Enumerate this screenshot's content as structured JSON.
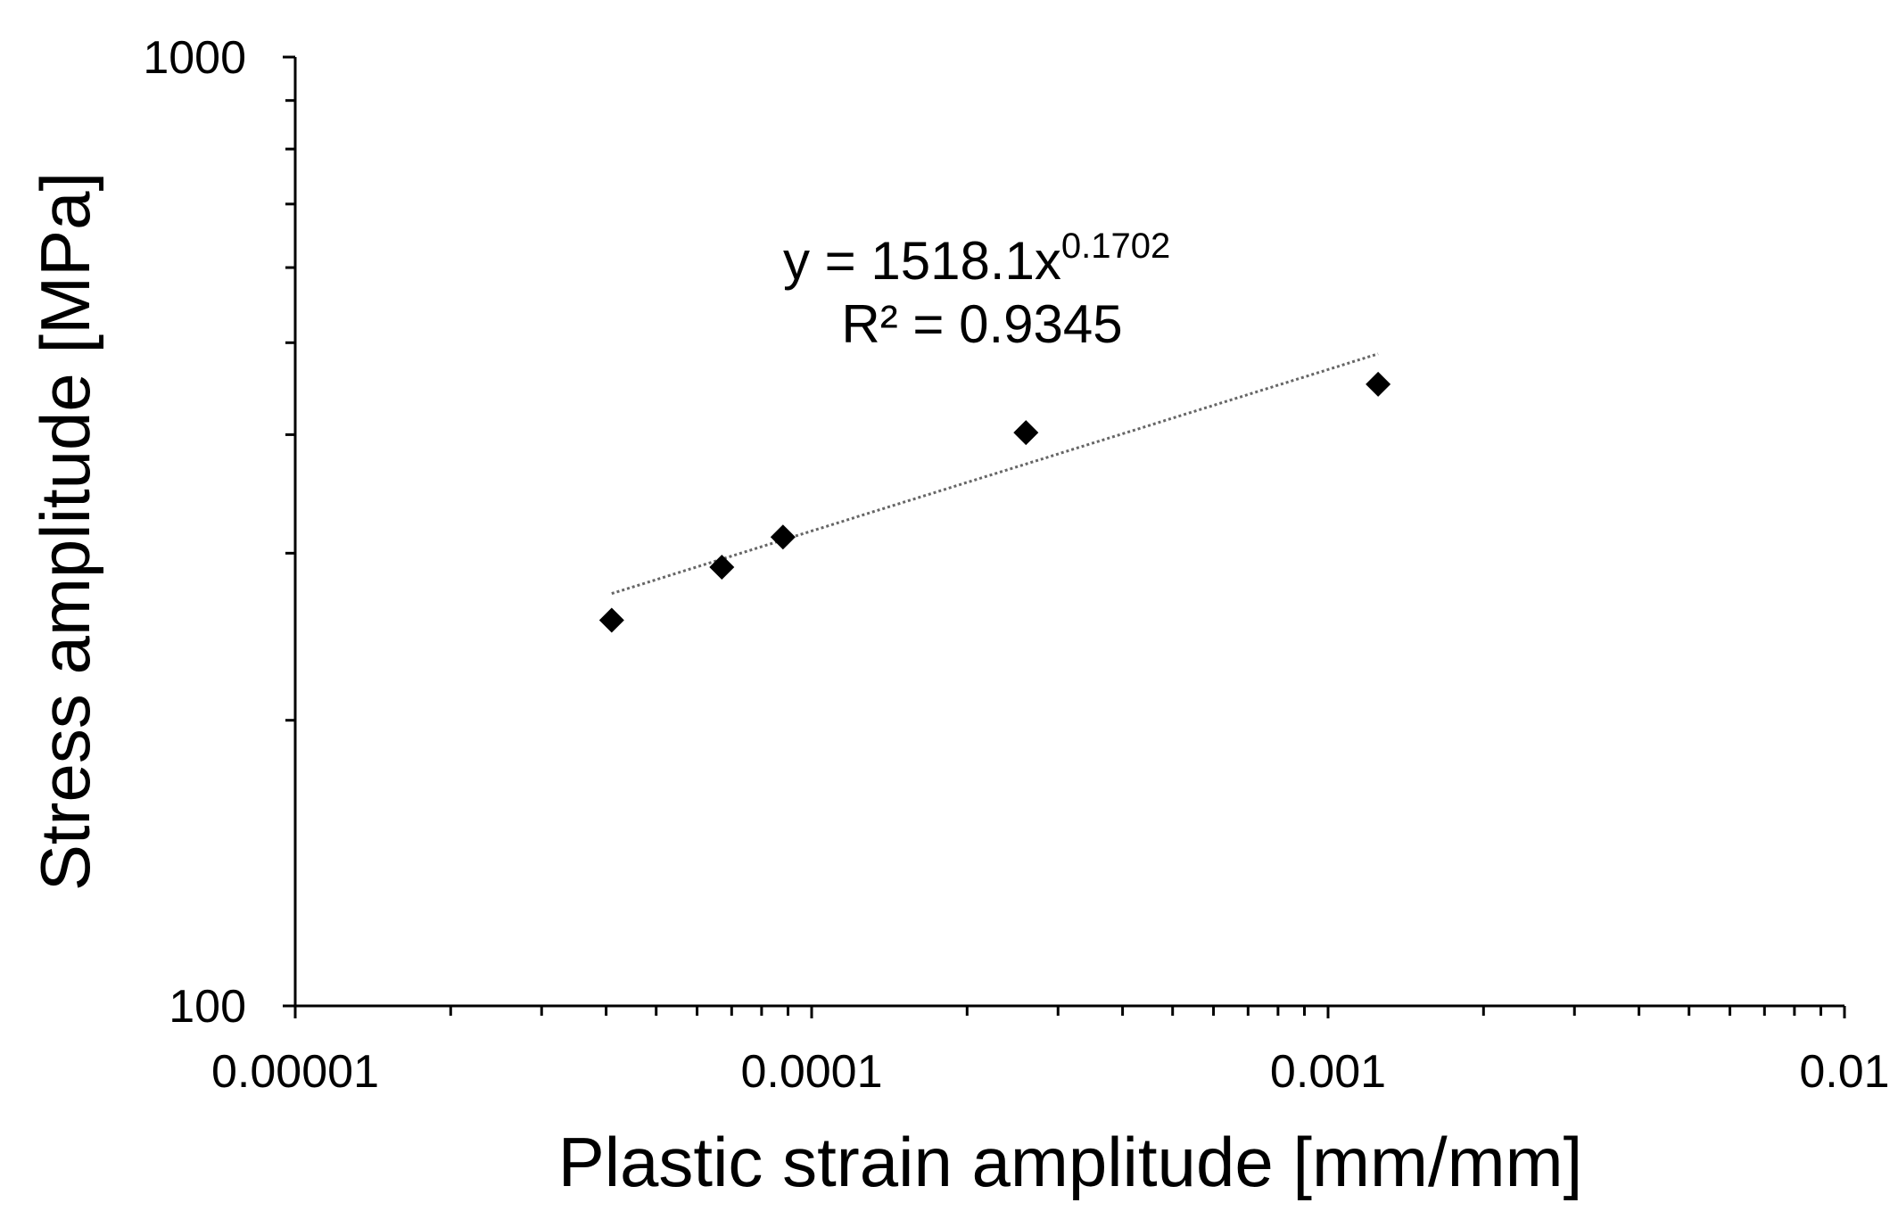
{
  "chart_data": {
    "type": "scatter",
    "xlabel": "Plastic strain amplitude [mm/mm]",
    "ylabel": "Stress amplitude [MPa]",
    "x_scale": "log",
    "y_scale": "log",
    "xlim": [
      1e-05,
      0.01
    ],
    "ylim": [
      100,
      1000
    ],
    "x_tick_labels": [
      "0.00001",
      "0.0001",
      "0.001",
      "0.01"
    ],
    "y_tick_labels": [
      "100",
      "1000"
    ],
    "grid": false,
    "legend": "none",
    "series": [
      {
        "marker": "diamond",
        "color": "#000000",
        "points": [
          {
            "x": 4.1e-05,
            "y": 255
          },
          {
            "x": 6.7e-05,
            "y": 290
          },
          {
            "x": 8.8e-05,
            "y": 312
          },
          {
            "x": 0.00026,
            "y": 402
          },
          {
            "x": 0.00125,
            "y": 452
          }
        ]
      }
    ],
    "trendline": {
      "type": "power",
      "coefficient": 1518.1,
      "exponent": 0.1702,
      "x_range": [
        4.1e-05,
        0.00125
      ],
      "style": "dotted",
      "color": "#666666"
    },
    "annotation": {
      "equation_prefix": "y = 1518.1x",
      "equation_exponent": "0.1702",
      "r_squared": "R² = 0.9345"
    }
  }
}
